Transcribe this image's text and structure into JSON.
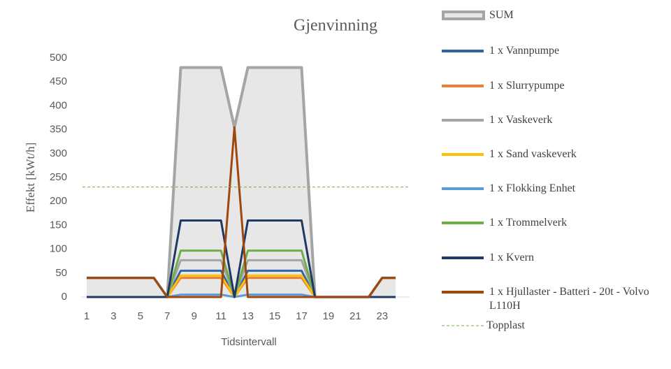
{
  "chart_data": {
    "type": "line",
    "title": "Gjenvinning",
    "x_label": "Tidsintervall",
    "y_label": "Effekt [kWt/h]",
    "categories": [
      "1",
      null,
      "3",
      null,
      "5",
      null,
      "7",
      null,
      "9",
      null,
      "11",
      null,
      "13",
      null,
      "15",
      null,
      "17",
      null,
      "19",
      null,
      "21",
      null,
      "23",
      null
    ],
    "ylim": [
      0,
      500
    ],
    "yticks": [
      0,
      50,
      100,
      150,
      200,
      250,
      300,
      350,
      400,
      450,
      500
    ],
    "grid": false,
    "series": [
      {
        "name": "SUM",
        "color": "#a5a5a5",
        "area": true,
        "values": [
          40,
          40,
          40,
          40,
          40,
          40,
          0,
          480,
          480,
          480,
          480,
          355,
          480,
          480,
          480,
          480,
          480,
          0,
          0,
          0,
          0,
          0,
          40,
          40
        ]
      },
      {
        "name": "1 x Vannpumpe",
        "color": "#2e64a8",
        "values": [
          0,
          0,
          0,
          0,
          0,
          0,
          0,
          55,
          55,
          55,
          55,
          0,
          55,
          55,
          55,
          55,
          55,
          0,
          0,
          0,
          0,
          0,
          0,
          0
        ]
      },
      {
        "name": "1 x Slurrypumpe",
        "color": "#ed7d31",
        "values": [
          0,
          0,
          0,
          0,
          0,
          0,
          0,
          40,
          40,
          40,
          40,
          0,
          40,
          40,
          40,
          40,
          40,
          0,
          0,
          0,
          0,
          0,
          0,
          0
        ]
      },
      {
        "name": "1 x Vaskeverk",
        "color": "#a5a5a5",
        "values": [
          0,
          0,
          0,
          0,
          0,
          0,
          0,
          77,
          77,
          77,
          77,
          0,
          77,
          77,
          77,
          77,
          77,
          0,
          0,
          0,
          0,
          0,
          0,
          0
        ]
      },
      {
        "name": "1 x Sand vaskeverk",
        "color": "#ffc000",
        "values": [
          0,
          0,
          0,
          0,
          0,
          0,
          0,
          45,
          45,
          45,
          45,
          0,
          45,
          45,
          45,
          45,
          45,
          0,
          0,
          0,
          0,
          0,
          0,
          0
        ]
      },
      {
        "name": "1 x Flokking Enhet",
        "color": "#5b9bd5",
        "values": [
          0,
          0,
          0,
          0,
          0,
          0,
          0,
          5,
          5,
          5,
          5,
          0,
          5,
          5,
          5,
          5,
          5,
          0,
          0,
          0,
          0,
          0,
          0,
          0
        ]
      },
      {
        "name": "1 x Trommelverk",
        "color": "#70ad47",
        "values": [
          0,
          0,
          0,
          0,
          0,
          0,
          0,
          97,
          97,
          97,
          97,
          0,
          97,
          97,
          97,
          97,
          97,
          0,
          0,
          0,
          0,
          0,
          0,
          0
        ]
      },
      {
        "name": "1 x Kvern",
        "color": "#1f3864",
        "values": [
          0,
          0,
          0,
          0,
          0,
          0,
          0,
          160,
          160,
          160,
          160,
          0,
          160,
          160,
          160,
          160,
          160,
          0,
          0,
          0,
          0,
          0,
          0,
          0
        ]
      },
      {
        "name": "1 x Hjullaster - Batteri - 20t - Volvo L110H",
        "color": "#9e480e",
        "values": [
          40,
          40,
          40,
          40,
          40,
          40,
          0,
          0,
          0,
          0,
          0,
          355,
          0,
          0,
          0,
          0,
          0,
          0,
          0,
          0,
          0,
          0,
          40,
          40
        ]
      }
    ],
    "reference_line": {
      "name": "Topplast",
      "value": 230,
      "color": "#70ad47"
    }
  }
}
